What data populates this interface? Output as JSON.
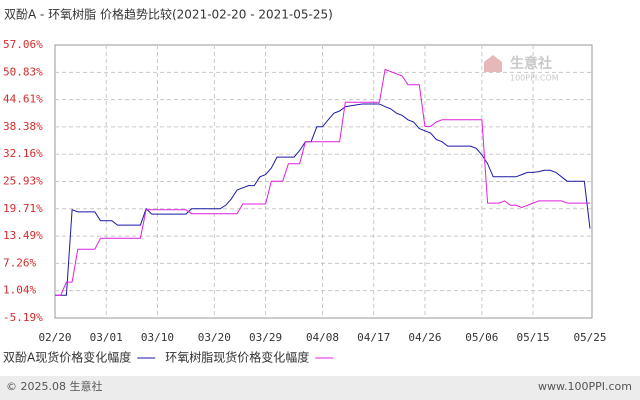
{
  "chart_data": {
    "type": "line",
    "title": "双酚A - 环氧树脂 价格趋势比较(2021-02-20 - 2021-05-25)",
    "watermark": {
      "name": "生意社",
      "site": "100PPI.COM"
    },
    "categories": [
      "02/20",
      null,
      null,
      null,
      null,
      null,
      null,
      null,
      null,
      "03/01",
      null,
      null,
      null,
      null,
      null,
      null,
      null,
      null,
      "03/10",
      null,
      null,
      null,
      null,
      null,
      null,
      null,
      null,
      null,
      "03/20",
      null,
      null,
      null,
      null,
      null,
      null,
      null,
      null,
      "03/29",
      null,
      null,
      null,
      null,
      null,
      null,
      null,
      null,
      null,
      "04/08",
      null,
      null,
      null,
      null,
      null,
      null,
      null,
      null,
      "04/17",
      null,
      null,
      null,
      null,
      null,
      null,
      null,
      null,
      "04/26",
      null,
      null,
      null,
      null,
      null,
      null,
      null,
      null,
      null,
      "05/06",
      null,
      null,
      null,
      null,
      null,
      null,
      null,
      null,
      "05/15",
      null,
      null,
      null,
      null,
      null,
      null,
      null,
      null,
      null,
      "05/25"
    ],
    "series": [
      {
        "name": "双酚A现货价格变化幅度",
        "color": "#1a1aa6",
        "values": [
          0,
          0,
          0,
          19.5,
          19,
          19,
          19,
          19,
          17,
          17,
          17,
          16,
          16,
          16,
          16,
          16,
          19.7,
          18.5,
          18.5,
          18.5,
          18.5,
          18.5,
          18.5,
          18.5,
          19.7,
          19.7,
          19.7,
          19.7,
          19.7,
          19.7,
          20.5,
          22,
          24,
          24.5,
          25,
          25,
          27,
          27.5,
          29,
          31.5,
          31.5,
          31.5,
          31.5,
          33,
          35,
          35,
          38.4,
          38.4,
          40,
          41.5,
          42,
          43,
          43.2,
          43.4,
          43.6,
          43.6,
          43.6,
          43.6,
          43,
          42.5,
          41.5,
          41,
          40,
          39.5,
          38,
          37.5,
          37,
          35.5,
          35,
          34,
          34,
          34,
          34,
          34,
          33.5,
          32,
          30,
          27,
          27,
          27,
          27,
          27,
          27.5,
          28,
          28,
          28.2,
          28.5,
          28.5,
          28,
          27,
          26,
          26,
          26,
          26,
          15.2
        ]
      },
      {
        "name": "环氧树脂现货价格变化幅度",
        "color": "#e020e0",
        "values": [
          0,
          0,
          3,
          3,
          10.5,
          10.5,
          10.5,
          10.5,
          13,
          13,
          13,
          13,
          13,
          13,
          13,
          13,
          19.5,
          19.5,
          19.5,
          19.5,
          19.5,
          19.5,
          19.5,
          19.5,
          18.6,
          18.6,
          18.6,
          18.6,
          18.6,
          18.6,
          18.6,
          18.6,
          18.6,
          20.8,
          20.8,
          20.8,
          20.8,
          20.8,
          26,
          26,
          26,
          30,
          30,
          30,
          35,
          35,
          35,
          35,
          35,
          35,
          35,
          44,
          44,
          44,
          44,
          44,
          44,
          44,
          51.5,
          51,
          50.5,
          50,
          48,
          48,
          48,
          38.5,
          38.5,
          39.5,
          40,
          40,
          40,
          40,
          40,
          40,
          40,
          40,
          21,
          21,
          21,
          21.5,
          20.5,
          20.5,
          20,
          20.5,
          21,
          21.5,
          21.5,
          21.5,
          21.5,
          21.5,
          21,
          21,
          21,
          21,
          21
        ]
      }
    ],
    "ylim": [
      -5.19,
      57.06
    ],
    "yticks": [
      {
        "value": 57.06,
        "label": "57.06%"
      },
      {
        "value": 50.83,
        "label": "50.83%"
      },
      {
        "value": 44.61,
        "label": "44.61%"
      },
      {
        "value": 38.38,
        "label": "38.38%"
      },
      {
        "value": 32.16,
        "label": "32.16%"
      },
      {
        "value": 25.93,
        "label": "25.93%"
      },
      {
        "value": 19.71,
        "label": "19.71%"
      },
      {
        "value": 13.49,
        "label": "13.49%"
      },
      {
        "value": 7.26,
        "label": "7.26%"
      },
      {
        "value": 1.04,
        "label": "1.04%"
      },
      {
        "value": -5.19,
        "label": "-5.19%"
      }
    ],
    "grid": true
  },
  "footer": {
    "copyright": "© 2025.08 生意社",
    "site": "www.100PPI.com"
  }
}
